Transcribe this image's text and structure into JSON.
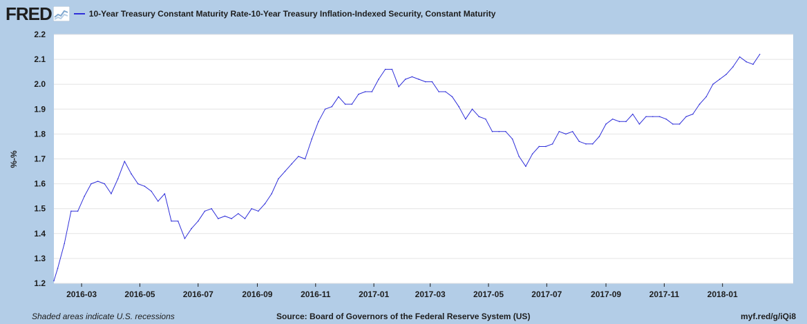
{
  "header": {
    "logo_text": "FRED",
    "logo_icon": "line-chart-icon"
  },
  "footer": {
    "note": "Shaded areas indicate U.S. recessions",
    "source": "Source: Board of Governors of the Federal Reserve System (US)",
    "link": "myf.red/g/iQi8"
  },
  "colors": {
    "background": "#b3cde7",
    "plot_area": "#ffffff",
    "series_line": "#2d2dd9",
    "grid": "#e4e4e4"
  },
  "chart_data": {
    "type": "line",
    "title": "",
    "xlabel": "",
    "ylabel": "%-%",
    "ylim": [
      1.2,
      2.2
    ],
    "yticks": [
      "1.2",
      "1.3",
      "1.4",
      "1.5",
      "1.6",
      "1.7",
      "1.8",
      "1.9",
      "2.0",
      "2.1",
      "2.2"
    ],
    "xlim": [
      "2016-02-01",
      "2018-03-16"
    ],
    "xticks": [
      {
        "date": "2016-03-01",
        "label": "2016-03"
      },
      {
        "date": "2016-05-01",
        "label": "2016-05"
      },
      {
        "date": "2016-07-01",
        "label": "2016-07"
      },
      {
        "date": "2016-09-01",
        "label": "2016-09"
      },
      {
        "date": "2016-11-01",
        "label": "2016-11"
      },
      {
        "date": "2017-01-01",
        "label": "2017-01"
      },
      {
        "date": "2017-03-01",
        "label": "2017-03"
      },
      {
        "date": "2017-05-01",
        "label": "2017-05"
      },
      {
        "date": "2017-07-01",
        "label": "2017-07"
      },
      {
        "date": "2017-09-01",
        "label": "2017-09"
      },
      {
        "date": "2017-11-01",
        "label": "2017-11"
      },
      {
        "date": "2018-01-01",
        "label": "2018-01"
      }
    ],
    "grid": true,
    "legend": "top-left",
    "series": [
      {
        "name": "10-Year Treasury Constant Maturity Rate-10-Year Treasury Inflation-Indexed Security, Constant Maturity",
        "color": "#2d2dd9",
        "points": [
          [
            "2016-02-01",
            1.21
          ],
          [
            "2016-02-05",
            1.26
          ],
          [
            "2016-02-12",
            1.36
          ],
          [
            "2016-02-19",
            1.49
          ],
          [
            "2016-02-26",
            1.49
          ],
          [
            "2016-03-04",
            1.55
          ],
          [
            "2016-03-11",
            1.6
          ],
          [
            "2016-03-18",
            1.61
          ],
          [
            "2016-03-25",
            1.6
          ],
          [
            "2016-04-01",
            1.56
          ],
          [
            "2016-04-08",
            1.62
          ],
          [
            "2016-04-15",
            1.69
          ],
          [
            "2016-04-22",
            1.64
          ],
          [
            "2016-04-29",
            1.6
          ],
          [
            "2016-05-06",
            1.59
          ],
          [
            "2016-05-13",
            1.57
          ],
          [
            "2016-05-20",
            1.53
          ],
          [
            "2016-05-27",
            1.56
          ],
          [
            "2016-06-03",
            1.45
          ],
          [
            "2016-06-10",
            1.45
          ],
          [
            "2016-06-17",
            1.38
          ],
          [
            "2016-06-24",
            1.42
          ],
          [
            "2016-07-01",
            1.45
          ],
          [
            "2016-07-08",
            1.49
          ],
          [
            "2016-07-15",
            1.5
          ],
          [
            "2016-07-22",
            1.46
          ],
          [
            "2016-07-29",
            1.47
          ],
          [
            "2016-08-05",
            1.46
          ],
          [
            "2016-08-12",
            1.48
          ],
          [
            "2016-08-19",
            1.46
          ],
          [
            "2016-08-26",
            1.5
          ],
          [
            "2016-09-02",
            1.49
          ],
          [
            "2016-09-09",
            1.52
          ],
          [
            "2016-09-16",
            1.56
          ],
          [
            "2016-09-23",
            1.62
          ],
          [
            "2016-09-30",
            1.65
          ],
          [
            "2016-10-07",
            1.68
          ],
          [
            "2016-10-14",
            1.71
          ],
          [
            "2016-10-21",
            1.7
          ],
          [
            "2016-10-28",
            1.78
          ],
          [
            "2016-11-04",
            1.85
          ],
          [
            "2016-11-11",
            1.9
          ],
          [
            "2016-11-18",
            1.91
          ],
          [
            "2016-11-25",
            1.95
          ],
          [
            "2016-12-02",
            1.92
          ],
          [
            "2016-12-09",
            1.92
          ],
          [
            "2016-12-16",
            1.96
          ],
          [
            "2016-12-23",
            1.97
          ],
          [
            "2016-12-30",
            1.97
          ],
          [
            "2017-01-06",
            2.02
          ],
          [
            "2017-01-13",
            2.06
          ],
          [
            "2017-01-20",
            2.06
          ],
          [
            "2017-01-27",
            1.99
          ],
          [
            "2017-02-03",
            2.02
          ],
          [
            "2017-02-10",
            2.03
          ],
          [
            "2017-02-17",
            2.02
          ],
          [
            "2017-02-24",
            2.01
          ],
          [
            "2017-03-03",
            2.01
          ],
          [
            "2017-03-10",
            1.97
          ],
          [
            "2017-03-17",
            1.97
          ],
          [
            "2017-03-24",
            1.95
          ],
          [
            "2017-03-31",
            1.91
          ],
          [
            "2017-04-07",
            1.86
          ],
          [
            "2017-04-14",
            1.9
          ],
          [
            "2017-04-21",
            1.87
          ],
          [
            "2017-04-28",
            1.86
          ],
          [
            "2017-05-05",
            1.81
          ],
          [
            "2017-05-12",
            1.81
          ],
          [
            "2017-05-19",
            1.81
          ],
          [
            "2017-05-26",
            1.78
          ],
          [
            "2017-06-02",
            1.71
          ],
          [
            "2017-06-09",
            1.67
          ],
          [
            "2017-06-16",
            1.72
          ],
          [
            "2017-06-23",
            1.75
          ],
          [
            "2017-06-30",
            1.75
          ],
          [
            "2017-07-07",
            1.76
          ],
          [
            "2017-07-14",
            1.81
          ],
          [
            "2017-07-21",
            1.8
          ],
          [
            "2017-07-28",
            1.81
          ],
          [
            "2017-08-04",
            1.77
          ],
          [
            "2017-08-11",
            1.76
          ],
          [
            "2017-08-18",
            1.76
          ],
          [
            "2017-08-25",
            1.79
          ],
          [
            "2017-09-01",
            1.84
          ],
          [
            "2017-09-08",
            1.86
          ],
          [
            "2017-09-15",
            1.85
          ],
          [
            "2017-09-22",
            1.85
          ],
          [
            "2017-09-29",
            1.88
          ],
          [
            "2017-10-06",
            1.84
          ],
          [
            "2017-10-13",
            1.87
          ],
          [
            "2017-10-20",
            1.87
          ],
          [
            "2017-10-27",
            1.87
          ],
          [
            "2017-11-03",
            1.86
          ],
          [
            "2017-11-10",
            1.84
          ],
          [
            "2017-11-17",
            1.84
          ],
          [
            "2017-11-24",
            1.87
          ],
          [
            "2017-12-01",
            1.88
          ],
          [
            "2017-12-08",
            1.92
          ],
          [
            "2017-12-15",
            1.95
          ],
          [
            "2017-12-22",
            2.0
          ],
          [
            "2017-12-29",
            2.02
          ],
          [
            "2018-01-05",
            2.04
          ],
          [
            "2018-01-12",
            2.07
          ],
          [
            "2018-01-19",
            2.11
          ],
          [
            "2018-01-26",
            2.09
          ],
          [
            "2018-02-02",
            2.08
          ],
          [
            "2018-02-09",
            2.12
          ]
        ]
      }
    ]
  }
}
